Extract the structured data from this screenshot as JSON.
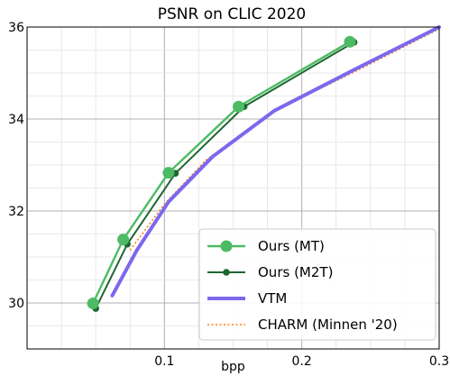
{
  "chart_data": {
    "type": "line",
    "title": "PSNR on CLIC 2020",
    "xlabel": "bpp",
    "ylabel": "",
    "xlim": [
      0.0,
      0.3
    ],
    "ylim": [
      29.0,
      36.0
    ],
    "xticks": [
      0.1,
      0.2,
      0.3
    ],
    "xtick_labels": [
      "0.1",
      "0.2",
      "0.3"
    ],
    "yticks": [
      30,
      32,
      34,
      36
    ],
    "ytick_labels": [
      "30",
      "32",
      "34",
      "36"
    ],
    "grid": true,
    "legend_position": "bottom-right",
    "series": [
      {
        "name": "Ours (MT)",
        "color": "#4cbb64",
        "marker": "circle-large",
        "line_style": "solid",
        "x": [
          0.048,
          0.07,
          0.103,
          0.154,
          0.235
        ],
        "y": [
          29.99,
          31.38,
          32.83,
          34.27,
          35.68
        ]
      },
      {
        "name": "Ours (M2T)",
        "color": "#1e6630",
        "marker": "circle-small",
        "line_style": "solid",
        "x": [
          0.05,
          0.073,
          0.108,
          0.158,
          0.238
        ],
        "y": [
          29.88,
          31.28,
          32.82,
          34.27,
          35.67
        ]
      },
      {
        "name": "VTM",
        "color": "#7b68ee",
        "marker": "none",
        "line_style": "solid",
        "x": [
          0.062,
          0.08,
          0.103,
          0.135,
          0.18,
          0.24,
          0.3
        ],
        "y": [
          30.16,
          31.15,
          32.2,
          33.18,
          34.18,
          35.1,
          36.0
        ]
      },
      {
        "name": "CHARM (Minnen '20)",
        "color": "#ff7f0e",
        "marker": "none",
        "line_style": "dotted",
        "x": [
          0.075,
          0.1,
          0.13,
          0.18,
          0.24,
          0.3
        ],
        "y": [
          31.15,
          32.15,
          33.1,
          34.18,
          35.05,
          35.96
        ]
      }
    ]
  }
}
